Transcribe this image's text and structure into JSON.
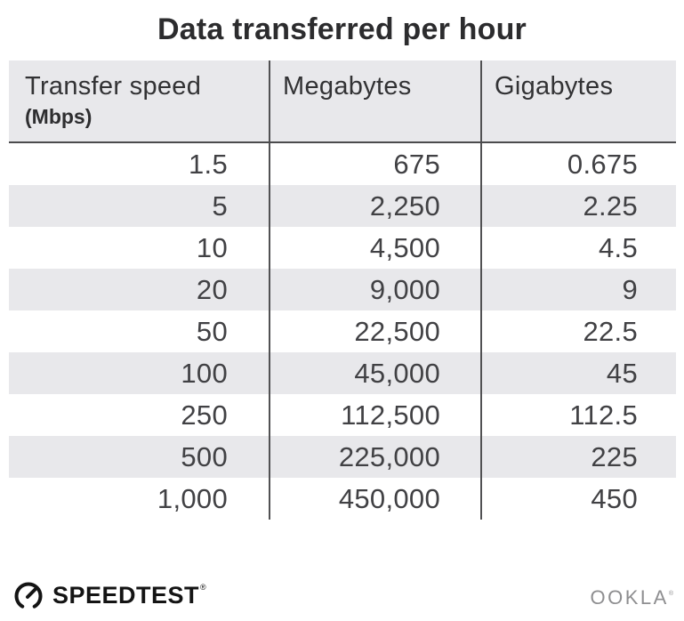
{
  "title": "Data transferred per hour",
  "table": {
    "header": {
      "col0_label": "Transfer speed",
      "col0_sublabel": "(Mbps)",
      "col1_label": "Megabytes",
      "col2_label": "Gigabytes"
    },
    "rows": [
      [
        "1.5",
        "675",
        "0.675"
      ],
      [
        "5",
        "2,250",
        "2.25"
      ],
      [
        "10",
        "4,500",
        "4.5"
      ],
      [
        "20",
        "9,000",
        "9"
      ],
      [
        "50",
        "22,500",
        "22.5"
      ],
      [
        "100",
        "45,000",
        "45"
      ],
      [
        "250",
        "112,500",
        "112.5"
      ],
      [
        "500",
        "225,000",
        "225"
      ],
      [
        "1,000",
        "450,000",
        "450"
      ]
    ]
  },
  "footer": {
    "speedtest_label": "SPEEDTEST",
    "speedtest_trademark": "®",
    "ookla_label": "OOKLA",
    "ookla_trademark": "®"
  },
  "colors": {
    "band_gray": "#e8e8eb",
    "divider_dark": "#515153",
    "header_rule": "#4b4b4d",
    "title_text": "#2c2c2e",
    "data_text": "#414144",
    "speedtest_black": "#141414",
    "ookla_gray": "#8e8e90"
  },
  "chart_data": {
    "type": "table",
    "title": "Data transferred per hour",
    "columns": [
      "Transfer speed (Mbps)",
      "Megabytes",
      "Gigabytes"
    ],
    "rows": [
      [
        1.5,
        675,
        0.675
      ],
      [
        5,
        2250,
        2.25
      ],
      [
        10,
        4500,
        4.5
      ],
      [
        20,
        9000,
        9
      ],
      [
        50,
        22500,
        22.5
      ],
      [
        100,
        45000,
        45
      ],
      [
        250,
        112500,
        112.5
      ],
      [
        500,
        225000,
        225
      ],
      [
        1000,
        450000,
        450
      ]
    ],
    "layout": {
      "row_striping": true,
      "stripe_start": "second_row",
      "value_alignment": "right"
    }
  }
}
